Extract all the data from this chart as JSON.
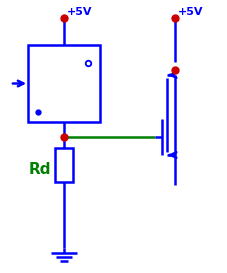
{
  "bg_color": "#ffffff",
  "blue": "#0000ff",
  "green": "#008000",
  "red_dot": "#cc0000",
  "label_color_5v": "#0000ff",
  "label_color_rd": "#008000",
  "figsize": [
    2.27,
    2.73
  ],
  "dpi": 100,
  "labels": {
    "vdd_left": "+5V",
    "vdd_right": "+5V",
    "rd": "Rd"
  },
  "lw": 1.8
}
